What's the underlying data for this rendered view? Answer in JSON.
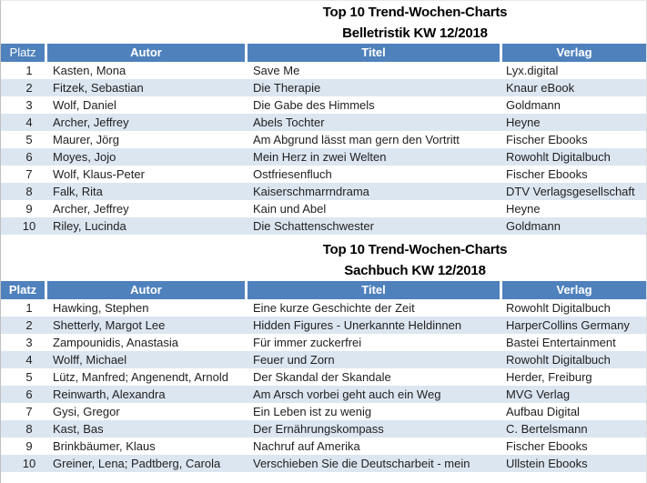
{
  "colors": {
    "header-bg": "#4f81bd",
    "header-text": "#ffffff",
    "band-bg": "#dce6f1"
  },
  "tables": [
    {
      "title_line1": "Top 10 Trend-Wochen-Charts",
      "title_line2": "Belletristik KW 12/2018",
      "columns": [
        "Platz",
        "Autor",
        "Titel",
        "Verlag"
      ],
      "rows": [
        {
          "platz": "1",
          "autor": "Kasten, Mona",
          "titel": "Save Me",
          "verlag": "Lyx.digital"
        },
        {
          "platz": "2",
          "autor": "Fitzek, Sebastian",
          "titel": "Die Therapie",
          "verlag": "Knaur eBook"
        },
        {
          "platz": "3",
          "autor": "Wolf, Daniel",
          "titel": "Die Gabe des Himmels",
          "verlag": "Goldmann"
        },
        {
          "platz": "4",
          "autor": "Archer, Jeffrey",
          "titel": "Abels Tochter",
          "verlag": "Heyne"
        },
        {
          "platz": "5",
          "autor": "Maurer, Jörg",
          "titel": "Am Abgrund lässt man gern den Vortritt",
          "verlag": "Fischer Ebooks"
        },
        {
          "platz": "6",
          "autor": "Moyes, Jojo",
          "titel": "Mein Herz in zwei Welten",
          "verlag": "Rowohlt Digitalbuch"
        },
        {
          "platz": "7",
          "autor": "Wolf, Klaus-Peter",
          "titel": "Ostfriesenfluch",
          "verlag": "Fischer Ebooks"
        },
        {
          "platz": "8",
          "autor": "Falk, Rita",
          "titel": "Kaiserschmarrndrama",
          "verlag": "DTV Verlagsgesellschaft"
        },
        {
          "platz": "9",
          "autor": "Archer, Jeffrey",
          "titel": "Kain und Abel",
          "verlag": "Heyne"
        },
        {
          "platz": "10",
          "autor": "Riley, Lucinda",
          "titel": "Die Schattenschwester",
          "verlag": "Goldmann"
        }
      ]
    },
    {
      "title_line1": "Top 10 Trend-Wochen-Charts",
      "title_line2": "Sachbuch KW 12/2018",
      "columns": [
        "Platz",
        "Autor",
        "Titel",
        "Verlag"
      ],
      "rows": [
        {
          "platz": "1",
          "autor": "Hawking, Stephen",
          "titel": "Eine kurze Geschichte der Zeit",
          "verlag": "Rowohlt Digitalbuch"
        },
        {
          "platz": "2",
          "autor": "Shetterly, Margot Lee",
          "titel": "Hidden Figures - Unerkannte Heldinnen",
          "verlag": "HarperCollins Germany"
        },
        {
          "platz": "3",
          "autor": "Zampounidis, Anastasia",
          "titel": "Für immer zuckerfrei",
          "verlag": "Bastei Entertainment"
        },
        {
          "platz": "4",
          "autor": "Wolff, Michael",
          "titel": "Feuer und Zorn",
          "verlag": "Rowohlt Digitalbuch"
        },
        {
          "platz": "5",
          "autor": "Lütz, Manfred; Angenendt, Arnold",
          "titel": "Der Skandal der Skandale",
          "verlag": "Herder, Freiburg"
        },
        {
          "platz": "6",
          "autor": "Reinwarth, Alexandra",
          "titel": "Am Arsch vorbei geht auch ein Weg",
          "verlag": "MVG Verlag"
        },
        {
          "platz": "7",
          "autor": "Gysi, Gregor",
          "titel": "Ein Leben ist zu wenig",
          "verlag": "Aufbau Digital"
        },
        {
          "platz": "8",
          "autor": "Kast, Bas",
          "titel": "Der Ernährungskompass",
          "verlag": "C. Bertelsmann"
        },
        {
          "platz": "9",
          "autor": "Brinkbäumer, Klaus",
          "titel": "Nachruf auf Amerika",
          "verlag": "Fischer Ebooks"
        },
        {
          "platz": "10",
          "autor": "Greiner, Lena; Padtberg, Carola",
          "titel": "Verschieben Sie die Deutscharbeit - mein",
          "verlag": "Ullstein Ebooks"
        }
      ]
    }
  ]
}
